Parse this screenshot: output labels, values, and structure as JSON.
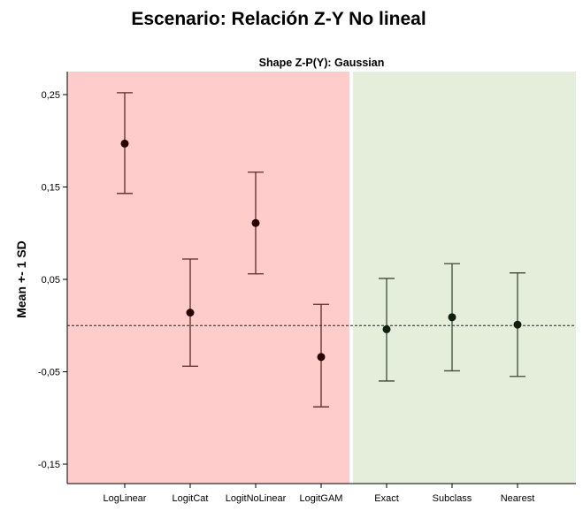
{
  "main_title": "Escenario: Relación Z-Y No lineal",
  "chart_data": {
    "type": "errorbar",
    "title": "Shape Z-P(Y): Gaussian",
    "xlabel": "",
    "ylabel": "Mean +- 1 SD",
    "ylim": [
      -0.17,
      0.27
    ],
    "yticks": [
      0.25,
      0.15,
      0.05,
      -0.05,
      -0.15
    ],
    "ytick_labels": [
      "0,25",
      "0,15",
      "0,05",
      "-0,05",
      "-0,15"
    ],
    "reference_line": 0.0,
    "categories": [
      "LogLinear",
      "LogitCat",
      "LogitNoLinear",
      "LogitGAM",
      "Exact",
      "Subclass",
      "Nearest"
    ],
    "groups": [
      {
        "categories": [
          "LogLinear",
          "LogitCat",
          "LogitNoLinear",
          "LogitGAM"
        ],
        "color": "#ffcccc"
      },
      {
        "categories": [
          "Exact",
          "Subclass",
          "Nearest"
        ],
        "color": "#e4eedb"
      }
    ],
    "mean": [
      0.197,
      0.014,
      0.111,
      -0.034,
      -0.004,
      0.009,
      0.001
    ],
    "lower": [
      0.143,
      -0.044,
      0.056,
      -0.088,
      -0.06,
      -0.049,
      -0.055
    ],
    "upper": [
      0.252,
      0.072,
      0.166,
      0.023,
      0.051,
      0.067,
      0.057
    ],
    "colors": {
      "group1_marker": "#2a0000",
      "group1_bar": "#5a2a2a",
      "group2_marker": "#102010",
      "group2_bar": "#3a4a3a"
    }
  }
}
